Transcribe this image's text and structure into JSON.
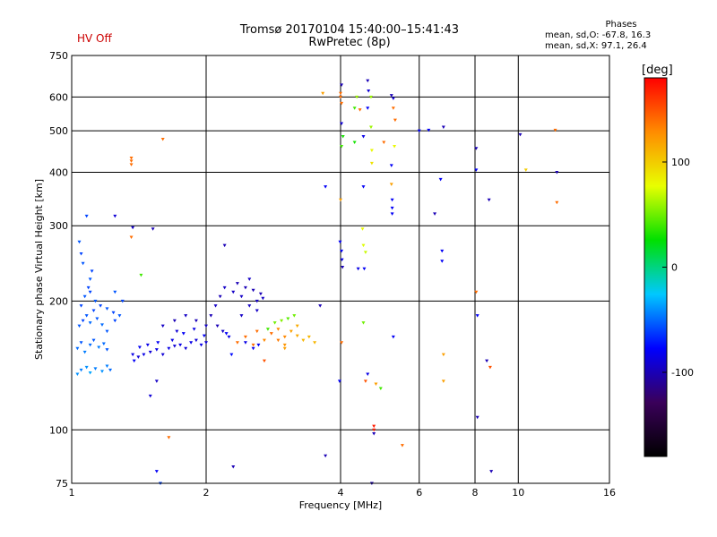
{
  "header": {
    "status": "HV Off",
    "title": "Tromsø 20170104 15:40:00–15:41:43",
    "subtitle": "RwPretec (8p)",
    "stats_title": "Phases",
    "stats_o": "mean, sd,O: -67.8, 16.3",
    "stats_x": "mean, sd,X:  97.1, 26.4"
  },
  "chart_data": {
    "type": "scatter",
    "xlabel": "Frequency [MHz]",
    "ylabel": "Stationary phase Virtual Height [km]",
    "x_scale": "log",
    "y_scale": "log",
    "xlim": [
      1,
      16
    ],
    "ylim": [
      75,
      750
    ],
    "x_ticks": [
      1,
      2,
      4,
      6,
      8,
      10,
      16
    ],
    "y_ticks": [
      75,
      100,
      200,
      300,
      400,
      500,
      600,
      750
    ],
    "grid": true,
    "colorbar": {
      "label": "[deg]",
      "range": [
        -180,
        180
      ],
      "ticks": [
        100,
        0,
        -100
      ],
      "colors": [
        "#000000",
        "#3a005a",
        "#0000ff",
        "#00c8ff",
        "#00e000",
        "#e8ff00",
        "#ff8c00",
        "#ff0000"
      ]
    },
    "series": [
      {
        "points": [
          [
            1.03,
            135,
            -40
          ],
          [
            1.05,
            138,
            -45
          ],
          [
            1.08,
            140,
            -40
          ],
          [
            1.1,
            136,
            -35
          ],
          [
            1.13,
            139,
            -45
          ],
          [
            1.17,
            137,
            -40
          ],
          [
            1.2,
            141,
            -45
          ],
          [
            1.22,
            138,
            -50
          ],
          [
            1.03,
            155,
            -50
          ],
          [
            1.05,
            160,
            -55
          ],
          [
            1.07,
            152,
            -45
          ],
          [
            1.1,
            158,
            -50
          ],
          [
            1.12,
            162,
            -55
          ],
          [
            1.15,
            156,
            -45
          ],
          [
            1.18,
            159,
            -50
          ],
          [
            1.2,
            154,
            -55
          ],
          [
            1.04,
            175,
            -55
          ],
          [
            1.06,
            180,
            -60
          ],
          [
            1.08,
            185,
            -55
          ],
          [
            1.1,
            178,
            -50
          ],
          [
            1.12,
            190,
            -60
          ],
          [
            1.14,
            182,
            -55
          ],
          [
            1.17,
            176,
            -50
          ],
          [
            1.2,
            170,
            -55
          ],
          [
            1.05,
            195,
            -60
          ],
          [
            1.07,
            205,
            -55
          ],
          [
            1.09,
            215,
            -60
          ],
          [
            1.1,
            225,
            -55
          ],
          [
            1.11,
            235,
            -60
          ],
          [
            1.06,
            245,
            -55
          ],
          [
            1.05,
            258,
            -60
          ],
          [
            1.04,
            275,
            -55
          ],
          [
            1.1,
            210,
            -60
          ],
          [
            1.13,
            200,
            -55
          ],
          [
            1.16,
            195,
            -60
          ],
          [
            1.2,
            192,
            -55
          ],
          [
            1.24,
            188,
            -60
          ],
          [
            1.28,
            185,
            -55
          ],
          [
            1.3,
            200,
            -60
          ],
          [
            1.25,
            210,
            -55
          ],
          [
            1.08,
            316,
            -60
          ],
          [
            1.25,
            316,
            -90
          ],
          [
            1.37,
            297,
            -95
          ],
          [
            1.52,
            295,
            -100
          ],
          [
            1.36,
            282,
            140
          ],
          [
            1.36,
            432,
            140
          ],
          [
            1.36,
            425,
            140
          ],
          [
            1.36,
            417,
            140
          ],
          [
            1.6,
            478,
            140
          ],
          [
            1.37,
            150,
            -85
          ],
          [
            1.41,
            148,
            -90
          ],
          [
            1.45,
            150,
            -85
          ],
          [
            1.5,
            152,
            -90
          ],
          [
            1.55,
            154,
            -85
          ],
          [
            1.6,
            150,
            -90
          ],
          [
            1.65,
            155,
            -85
          ],
          [
            1.7,
            157,
            -90
          ],
          [
            1.75,
            158,
            -85
          ],
          [
            1.8,
            155,
            -90
          ],
          [
            1.85,
            160,
            -85
          ],
          [
            1.9,
            162,
            -90
          ],
          [
            1.95,
            158,
            -85
          ],
          [
            2.0,
            160,
            -90
          ],
          [
            1.42,
            156,
            -80
          ],
          [
            1.48,
            158,
            -85
          ],
          [
            1.56,
            160,
            -80
          ],
          [
            1.68,
            162,
            -85
          ],
          [
            1.78,
            168,
            -80
          ],
          [
            1.88,
            172,
            -85
          ],
          [
            1.98,
            166,
            -80
          ],
          [
            1.6,
            175,
            -95
          ],
          [
            1.7,
            180,
            -100
          ],
          [
            1.8,
            185,
            -95
          ],
          [
            1.9,
            180,
            -100
          ],
          [
            2.0,
            175,
            -95
          ],
          [
            1.72,
            170,
            -90
          ],
          [
            1.55,
            130,
            -95
          ],
          [
            1.38,
            145,
            -80
          ],
          [
            1.43,
            230,
            40
          ],
          [
            1.25,
            180,
            -60
          ],
          [
            2.05,
            185,
            -100
          ],
          [
            2.1,
            195,
            -95
          ],
          [
            2.15,
            205,
            -100
          ],
          [
            2.2,
            215,
            -95
          ],
          [
            2.12,
            175,
            -100
          ],
          [
            2.18,
            170,
            -95
          ],
          [
            2.22,
            168,
            -80
          ],
          [
            2.25,
            165,
            -85
          ],
          [
            2.3,
            210,
            -95
          ],
          [
            2.35,
            220,
            -100
          ],
          [
            2.4,
            205,
            -95
          ],
          [
            2.45,
            215,
            -100
          ],
          [
            2.5,
            225,
            -95
          ],
          [
            2.55,
            212,
            -100
          ],
          [
            2.6,
            200,
            -95
          ],
          [
            2.65,
            208,
            -100
          ],
          [
            2.68,
            203,
            -95
          ],
          [
            2.5,
            195,
            -95
          ],
          [
            2.4,
            185,
            -95
          ],
          [
            2.6,
            190,
            -95
          ],
          [
            2.55,
            155,
            -80
          ],
          [
            2.45,
            160,
            -85
          ],
          [
            2.62,
            158,
            -80
          ],
          [
            2.28,
            150,
            -75
          ],
          [
            2.35,
            160,
            140
          ],
          [
            2.45,
            165,
            140
          ],
          [
            2.55,
            158,
            140
          ],
          [
            2.6,
            170,
            140
          ],
          [
            2.7,
            162,
            130
          ],
          [
            2.8,
            168,
            140
          ],
          [
            2.9,
            172,
            130
          ],
          [
            3.0,
            165,
            130
          ],
          [
            3.1,
            170,
            120
          ],
          [
            3.2,
            166,
            115
          ],
          [
            3.3,
            162,
            110
          ],
          [
            3.4,
            165,
            110
          ],
          [
            3.5,
            160,
            110
          ],
          [
            2.85,
            178,
            50
          ],
          [
            2.95,
            180,
            55
          ],
          [
            3.05,
            182,
            45
          ],
          [
            3.15,
            185,
            50
          ],
          [
            2.75,
            172,
            40
          ],
          [
            2.9,
            162,
            135
          ],
          [
            3.0,
            158,
            125
          ],
          [
            3.2,
            175,
            115
          ],
          [
            2.7,
            145,
            150
          ],
          [
            3.0,
            155,
            120
          ],
          [
            3.6,
            195,
            -100
          ],
          [
            2.2,
            270,
            -100
          ],
          [
            3.7,
            370,
            -80
          ],
          [
            3.65,
            612,
            120
          ],
          [
            4.0,
            612,
            140
          ],
          [
            4.0,
            600,
            140
          ],
          [
            4.02,
            580,
            140
          ],
          [
            4.02,
            520,
            -90
          ],
          [
            4.05,
            485,
            30
          ],
          [
            4.02,
            460,
            40
          ],
          [
            4.0,
            345,
            120
          ],
          [
            3.99,
            275,
            -80
          ],
          [
            4.02,
            262,
            -80
          ],
          [
            4.03,
            250,
            -85
          ],
          [
            4.04,
            240,
            -100
          ],
          [
            3.98,
            130,
            -80
          ],
          [
            4.02,
            160,
            140
          ],
          [
            4.02,
            640,
            -100
          ],
          [
            4.3,
            470,
            30
          ],
          [
            4.5,
            485,
            -85
          ],
          [
            4.5,
            370,
            -80
          ],
          [
            4.48,
            295,
            80
          ],
          [
            4.5,
            270,
            75
          ],
          [
            4.55,
            260,
            70
          ],
          [
            4.52,
            238,
            -80
          ],
          [
            4.5,
            178,
            50
          ],
          [
            4.55,
            130,
            150
          ],
          [
            4.3,
            565,
            40
          ],
          [
            4.35,
            600,
            60
          ],
          [
            4.42,
            560,
            140
          ],
          [
            4.6,
            655,
            -100
          ],
          [
            4.62,
            620,
            -90
          ],
          [
            4.68,
            600,
            60
          ],
          [
            4.6,
            565,
            -80
          ],
          [
            4.68,
            510,
            60
          ],
          [
            4.7,
            450,
            80
          ],
          [
            4.7,
            420,
            90
          ],
          [
            4.75,
            102,
            170
          ],
          [
            4.75,
            100,
            170
          ],
          [
            4.75,
            98,
            -100
          ],
          [
            4.7,
            75,
            -100
          ],
          [
            4.38,
            238,
            -85
          ],
          [
            4.6,
            135,
            -85
          ],
          [
            4.8,
            128,
            120
          ],
          [
            5.0,
            470,
            140
          ],
          [
            5.2,
            605,
            -100
          ],
          [
            5.25,
            595,
            -90
          ],
          [
            5.25,
            565,
            140
          ],
          [
            5.3,
            530,
            140
          ],
          [
            5.28,
            460,
            80
          ],
          [
            5.2,
            415,
            -80
          ],
          [
            5.2,
            375,
            120
          ],
          [
            5.22,
            345,
            -80
          ],
          [
            5.22,
            330,
            -80
          ],
          [
            5.22,
            320,
            -80
          ],
          [
            5.25,
            165,
            -80
          ],
          [
            5.5,
            92,
            140
          ],
          [
            6.3,
            502,
            -80
          ],
          [
            6.5,
            320,
            -100
          ],
          [
            6.8,
            510,
            -100
          ],
          [
            6.7,
            385,
            -80
          ],
          [
            6.75,
            262,
            -80
          ],
          [
            6.75,
            248,
            -80
          ],
          [
            6.8,
            150,
            120
          ],
          [
            6.8,
            130,
            120
          ],
          [
            8.05,
            455,
            -100
          ],
          [
            8.05,
            405,
            -80
          ],
          [
            8.05,
            210,
            140
          ],
          [
            8.1,
            185,
            -80
          ],
          [
            8.1,
            107,
            -100
          ],
          [
            8.6,
            345,
            -100
          ],
          [
            8.5,
            145,
            -100
          ],
          [
            8.65,
            140,
            150
          ],
          [
            8.7,
            80,
            -100
          ],
          [
            10.1,
            490,
            -100
          ],
          [
            10.4,
            405,
            100
          ],
          [
            12.1,
            502,
            140
          ],
          [
            12.2,
            400,
            -100
          ],
          [
            12.2,
            340,
            140
          ],
          [
            6.0,
            500,
            -80
          ],
          [
            1.65,
            96,
            140
          ],
          [
            1.55,
            80,
            -80
          ],
          [
            1.58,
            75,
            -60
          ],
          [
            2.3,
            82,
            -100
          ],
          [
            3.7,
            87,
            -100
          ],
          [
            1.5,
            120,
            -90
          ],
          [
            4.92,
            125,
            40
          ]
        ]
      }
    ]
  }
}
